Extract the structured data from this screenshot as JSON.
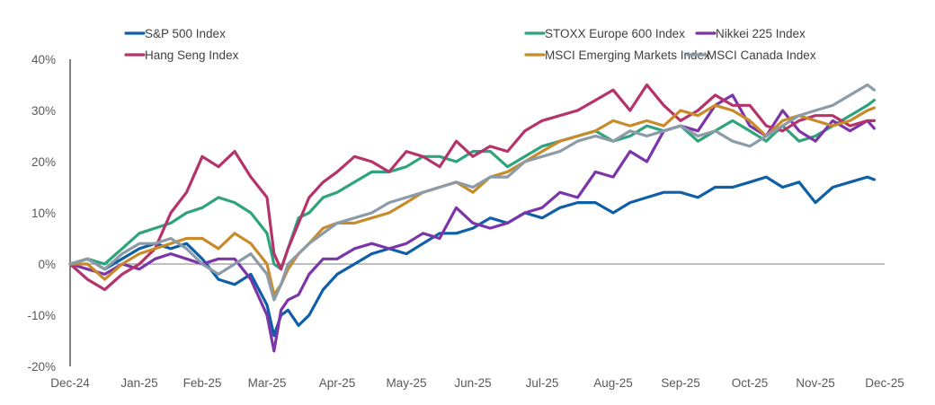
{
  "chart_data": {
    "type": "line",
    "title": "",
    "xlabel": "",
    "ylabel": "",
    "ylim": [
      -20,
      40
    ],
    "yticks": [
      40,
      30,
      20,
      10,
      0,
      -10,
      -20
    ],
    "ytick_labels": [
      "40%",
      "30%",
      "20%",
      "10%",
      "0%",
      "-10%",
      "-20%"
    ],
    "xtick_labels": [
      "Dec-24",
      "Jan-25",
      "Feb-25",
      "Mar-25",
      "Apr-25",
      "May-25",
      "Jun-25",
      "Jul-25",
      "Aug-25",
      "Sep-25",
      "Oct-25",
      "Nov-25",
      "Dec-25"
    ],
    "xlim_months": [
      0,
      12
    ],
    "x_unit": "months since end of Dec-24",
    "grid": false,
    "zero_line": true,
    "legend_position": "top",
    "x": [
      0,
      0.25,
      0.5,
      0.75,
      1,
      1.25,
      1.5,
      1.75,
      2,
      2.25,
      2.5,
      2.75,
      3,
      3.1,
      3.2,
      3.3,
      3.45,
      3.6,
      3.8,
      4,
      4.25,
      4.5,
      4.75,
      5,
      5.25,
      5.5,
      5.75,
      6,
      6.25,
      6.5,
      6.75,
      7,
      7.25,
      7.5,
      7.75,
      8,
      8.25,
      8.5,
      8.75,
      9,
      9.25,
      9.5,
      9.75,
      10,
      10.25,
      10.5,
      10.75,
      11,
      11.25,
      11.5,
      11.75,
      11.85
    ],
    "series": [
      {
        "name": "S&P 500 Index",
        "color": "#0f5fa6",
        "values": [
          0,
          1,
          -1,
          1,
          3,
          4,
          3,
          4,
          1,
          -3,
          -4,
          -2,
          -8,
          -14,
          -10,
          -9,
          -12,
          -10,
          -5,
          -2,
          0,
          2,
          3,
          2,
          4,
          6,
          6,
          7,
          9,
          8,
          10,
          9,
          11,
          12,
          12,
          10,
          12,
          13,
          14,
          14,
          13,
          15,
          15,
          16,
          17,
          15,
          16,
          12,
          15,
          16,
          17,
          16.5
        ]
      },
      {
        "name": "STOXX Europe 600 Index",
        "color": "#2ea37c",
        "values": [
          0,
          1,
          0,
          3,
          6,
          7,
          8,
          10,
          11,
          13,
          12,
          10,
          6,
          0,
          -1,
          3,
          9,
          10,
          13,
          14,
          16,
          18,
          18,
          19,
          21,
          21,
          20,
          22,
          22,
          19,
          21,
          23,
          24,
          25,
          26,
          24,
          25,
          27,
          26,
          27,
          24,
          26,
          28,
          26,
          24,
          27,
          24,
          25,
          27,
          29,
          31,
          32
        ]
      },
      {
        "name": "Nikkei 225 Index",
        "color": "#7b35a8",
        "values": [
          0,
          -1,
          -2,
          0,
          -1,
          1,
          2,
          1,
          0,
          1,
          1,
          -3,
          -10,
          -17,
          -9,
          -7,
          -6,
          -2,
          1,
          1,
          3,
          4,
          3,
          4,
          6,
          5,
          11,
          8,
          7,
          8,
          10,
          11,
          14,
          13,
          18,
          17,
          22,
          20,
          26,
          27,
          26,
          31,
          33,
          27,
          25,
          30,
          26,
          24,
          28,
          26,
          28,
          26.5
        ]
      },
      {
        "name": "Hang Seng Index",
        "color": "#b5336b",
        "values": [
          0,
          -3,
          -5,
          -2,
          0,
          3,
          10,
          14,
          21,
          19,
          22,
          17,
          13,
          2,
          -1,
          3,
          8,
          13,
          16,
          18,
          21,
          20,
          18,
          22,
          21,
          19,
          24,
          21,
          23,
          22,
          26,
          28,
          29,
          30,
          32,
          34,
          30,
          35,
          31,
          28,
          30,
          33,
          31,
          31,
          27,
          26,
          28,
          29,
          29,
          27,
          28,
          28
        ]
      },
      {
        "name": "MSCI Emerging Markets Index",
        "color": "#c88a2a",
        "values": [
          0,
          0,
          -3,
          0,
          2,
          3,
          4,
          5,
          5,
          3,
          6,
          4,
          0,
          -6,
          -4,
          -1,
          2,
          4,
          7,
          8,
          8,
          9,
          10,
          12,
          14,
          15,
          16,
          14,
          17,
          18,
          20,
          22,
          24,
          25,
          26,
          28,
          27,
          28,
          27,
          30,
          29,
          31,
          30,
          28,
          25,
          28,
          29,
          28,
          27,
          28,
          30,
          30.5
        ]
      },
      {
        "name": "MSCI Canada Index",
        "color": "#8c9ba8",
        "values": [
          0,
          1,
          -1,
          2,
          4,
          4,
          5,
          3,
          0,
          -2,
          0,
          2,
          -2,
          -7,
          -4,
          0,
          2,
          4,
          6,
          8,
          9,
          10,
          12,
          13,
          14,
          15,
          16,
          15,
          17,
          17,
          20,
          21,
          22,
          24,
          25,
          24,
          26,
          25,
          26,
          27,
          25,
          26,
          24,
          23,
          25,
          27,
          29,
          30,
          31,
          33,
          35,
          34
        ]
      }
    ]
  }
}
